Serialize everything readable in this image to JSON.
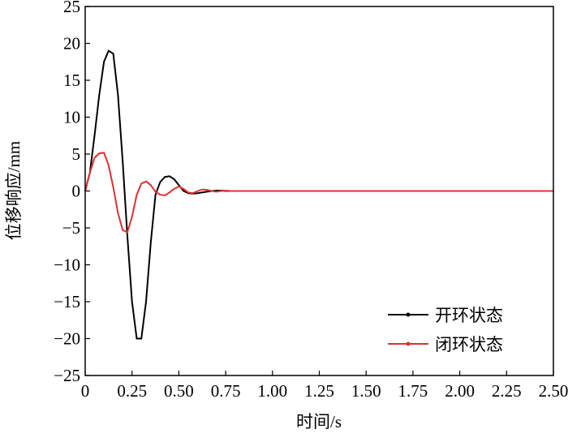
{
  "chart_data": {
    "type": "line",
    "x_label": "时间/s",
    "y_label": "位移响应/mm",
    "x": [
      0,
      0.025,
      0.05,
      0.075,
      0.1,
      0.125,
      0.15,
      0.175,
      0.2,
      0.225,
      0.25,
      0.275,
      0.3,
      0.325,
      0.35,
      0.375,
      0.4,
      0.425,
      0.45,
      0.475,
      0.5,
      0.525,
      0.55,
      0.575,
      0.6,
      0.625,
      0.65,
      0.675,
      0.7,
      0.725,
      0.75,
      0.775,
      0.8,
      1.0,
      1.5,
      2.0,
      2.5
    ],
    "series": [
      {
        "name": "开环状态",
        "color": "#000000",
        "values": [
          0,
          2.5,
          7.5,
          13,
          17.5,
          19,
          18.6,
          13,
          4,
          -6,
          -15,
          -20,
          -20,
          -15,
          -7,
          -0.5,
          1.2,
          1.9,
          2,
          1.6,
          0.8,
          0,
          -0.3,
          -0.35,
          -0.3,
          -0.2,
          -0.1,
          0,
          0.05,
          0.05,
          0,
          0,
          0,
          0,
          0,
          0,
          0
        ]
      },
      {
        "name": "闭环状态",
        "color": "#e03030",
        "values": [
          0,
          2.5,
          4.5,
          5.1,
          5.2,
          3.5,
          0.5,
          -3,
          -5.3,
          -5.6,
          -3.5,
          -0.5,
          1,
          1.3,
          0.8,
          -0.1,
          -0.5,
          -0.6,
          -0.2,
          0.3,
          0.6,
          0.3,
          -0.2,
          -0.3,
          0,
          0.2,
          0.15,
          0,
          -0.1,
          0,
          0.05,
          0,
          0,
          0,
          0,
          0,
          0
        ]
      }
    ],
    "xlim": [
      0,
      2.5
    ],
    "xticks": [
      0,
      0.25,
      {
        "value": 0.5,
        "label": "0.50"
      },
      0.75,
      {
        "value": 1,
        "label": "1.00"
      },
      1.25,
      {
        "value": 1.5,
        "label": "1.50"
      },
      1.75,
      {
        "value": 2,
        "label": "2.00"
      },
      2.25,
      {
        "value": 2.5,
        "label": "2.50"
      }
    ],
    "ylim": [
      -25,
      25
    ],
    "yticks": [
      {
        "value": -25,
        "label": "−25"
      },
      {
        "value": -20,
        "label": "−20"
      },
      {
        "value": -15,
        "label": "−15"
      },
      {
        "value": -10,
        "label": "−10"
      },
      {
        "value": -5,
        "label": "−5"
      },
      0,
      5,
      10,
      15,
      20,
      25
    ],
    "legend": "lower right"
  }
}
